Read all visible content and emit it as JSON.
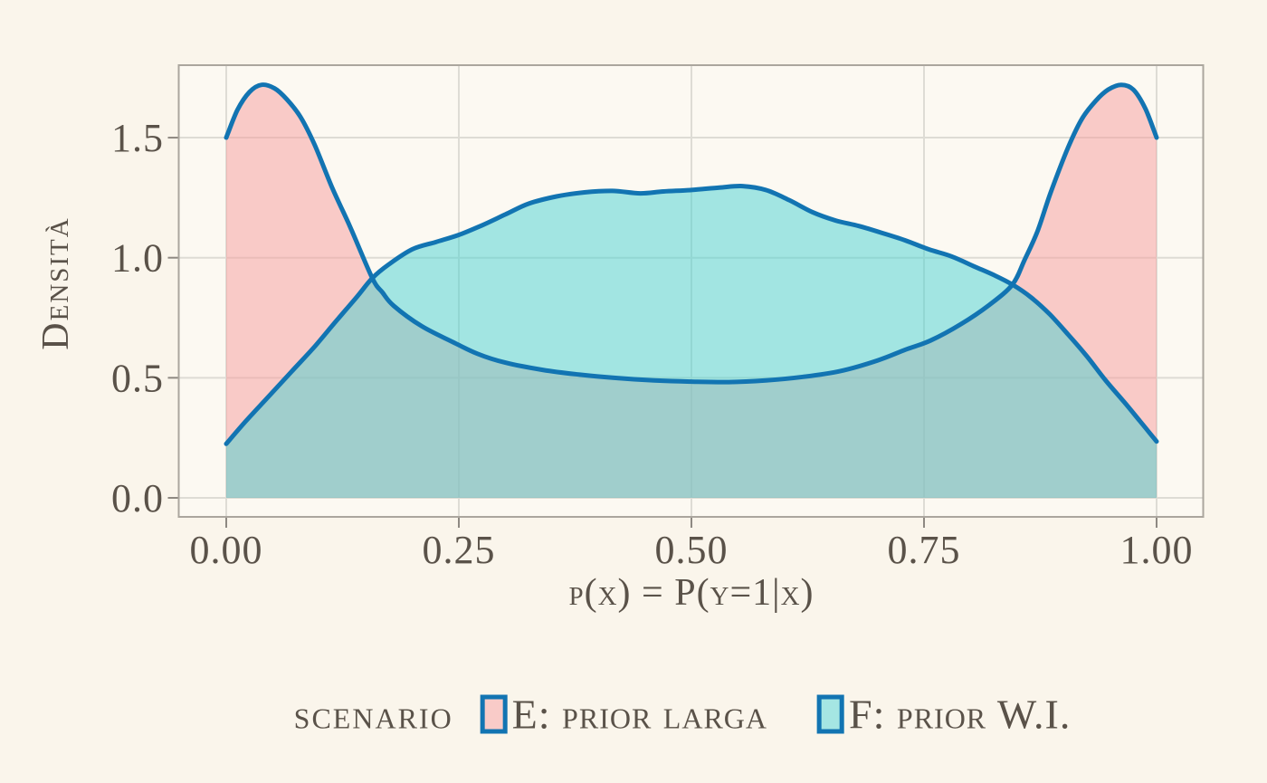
{
  "figure": {
    "colors": {
      "background": "#FAF5EB",
      "panel_background": "#FCF9F2",
      "grid": "#DEDCD5",
      "panel_border": "#ABA69E",
      "tick": "#8E8982",
      "text": "#5A5249",
      "curve_stroke": "#1274B2",
      "fill_e": "rgba(246,155,156,0.5)",
      "fill_f": "rgba(72,209,210,0.5)",
      "legend_swatch_e": "#F9CBC8",
      "legend_swatch_f": "#A5E6E3"
    }
  },
  "axes": {
    "x_title": "p(x) = P(y=1|x)",
    "y_title": "Densità",
    "x_tick_labels": [
      "0.00",
      "0.25",
      "0.50",
      "0.75",
      "1.00"
    ],
    "y_tick_labels": [
      "0.0",
      "0.5",
      "1.0",
      "1.5"
    ]
  },
  "legend": {
    "title": "scenario",
    "items": [
      {
        "label": "E: prior larga",
        "swatch_fill": "#F9CBC8"
      },
      {
        "label": "F: prior W.I.",
        "swatch_fill": "#A5E6E3"
      }
    ]
  },
  "chart_data": {
    "type": "area",
    "title": "",
    "xlabel": "p(x) = P(y=1|x)",
    "ylabel": "Densità",
    "xlim": [
      0,
      1
    ],
    "ylim": [
      0,
      1.72
    ],
    "x_ticks": [
      0,
      0.25,
      0.5,
      0.75,
      1
    ],
    "y_ticks": [
      0,
      0.5,
      1,
      1.5
    ],
    "grid": true,
    "legend_position": "bottom",
    "series": [
      {
        "name": "E: prior larga",
        "points": [
          [
            0,
            1.5
          ],
          [
            0.012,
            1.615
          ],
          [
            0.025,
            1.69
          ],
          [
            0.038,
            1.72
          ],
          [
            0.052,
            1.705
          ],
          [
            0.065,
            1.66
          ],
          [
            0.08,
            1.585
          ],
          [
            0.095,
            1.47
          ],
          [
            0.114,
            1.29
          ],
          [
            0.133,
            1.13
          ],
          [
            0.157,
            0.915
          ],
          [
            0.168,
            0.855
          ],
          [
            0.18,
            0.8
          ],
          [
            0.21,
            0.715
          ],
          [
            0.243,
            0.65
          ],
          [
            0.27,
            0.6
          ],
          [
            0.3,
            0.563
          ],
          [
            0.34,
            0.533
          ],
          [
            0.38,
            0.513
          ],
          [
            0.42,
            0.499
          ],
          [
            0.46,
            0.489
          ],
          [
            0.5,
            0.484
          ],
          [
            0.54,
            0.482
          ],
          [
            0.58,
            0.489
          ],
          [
            0.62,
            0.504
          ],
          [
            0.66,
            0.528
          ],
          [
            0.7,
            0.572
          ],
          [
            0.73,
            0.617
          ],
          [
            0.757,
            0.655
          ],
          [
            0.79,
            0.724
          ],
          [
            0.82,
            0.803
          ],
          [
            0.845,
            0.888
          ],
          [
            0.858,
            0.99
          ],
          [
            0.872,
            1.11
          ],
          [
            0.886,
            1.27
          ],
          [
            0.905,
            1.46
          ],
          [
            0.92,
            1.58
          ],
          [
            0.935,
            1.655
          ],
          [
            0.948,
            1.7
          ],
          [
            0.962,
            1.72
          ],
          [
            0.975,
            1.7
          ],
          [
            0.988,
            1.62
          ],
          [
            1,
            1.5
          ]
        ]
      },
      {
        "name": "F: prior W.I.",
        "points": [
          [
            0,
            0.225
          ],
          [
            0.02,
            0.315
          ],
          [
            0.045,
            0.42
          ],
          [
            0.07,
            0.525
          ],
          [
            0.095,
            0.63
          ],
          [
            0.12,
            0.745
          ],
          [
            0.14,
            0.835
          ],
          [
            0.157,
            0.915
          ],
          [
            0.175,
            0.973
          ],
          [
            0.2,
            1.035
          ],
          [
            0.225,
            1.065
          ],
          [
            0.25,
            1.095
          ],
          [
            0.275,
            1.135
          ],
          [
            0.3,
            1.18
          ],
          [
            0.325,
            1.225
          ],
          [
            0.355,
            1.255
          ],
          [
            0.385,
            1.272
          ],
          [
            0.415,
            1.278
          ],
          [
            0.445,
            1.268
          ],
          [
            0.47,
            1.276
          ],
          [
            0.5,
            1.282
          ],
          [
            0.53,
            1.292
          ],
          [
            0.555,
            1.298
          ],
          [
            0.58,
            1.282
          ],
          [
            0.605,
            1.24
          ],
          [
            0.63,
            1.19
          ],
          [
            0.655,
            1.155
          ],
          [
            0.68,
            1.132
          ],
          [
            0.705,
            1.103
          ],
          [
            0.73,
            1.072
          ],
          [
            0.755,
            1.035
          ],
          [
            0.78,
            1.005
          ],
          [
            0.805,
            0.962
          ],
          [
            0.825,
            0.928
          ],
          [
            0.845,
            0.888
          ],
          [
            0.865,
            0.835
          ],
          [
            0.885,
            0.765
          ],
          [
            0.905,
            0.68
          ],
          [
            0.925,
            0.59
          ],
          [
            0.945,
            0.49
          ],
          [
            0.965,
            0.4
          ],
          [
            0.982,
            0.32
          ],
          [
            1,
            0.235
          ]
        ]
      }
    ]
  }
}
